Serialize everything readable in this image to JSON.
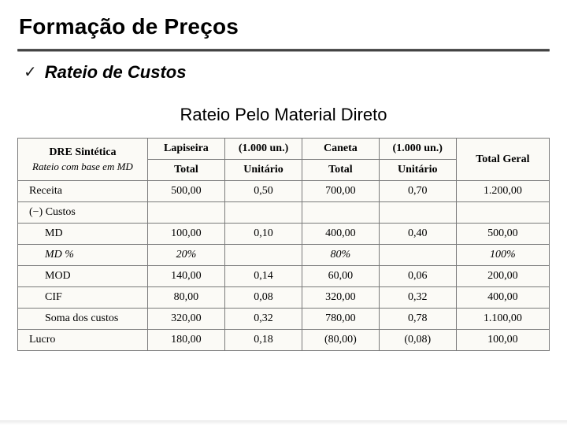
{
  "title": "Formação de Preços",
  "subtitle": "Rateio de Custos",
  "section_title": "Rateio Pelo Material Direto",
  "check_glyph": "✓",
  "colors": {
    "text": "#000000",
    "background": "#ffffff",
    "table_bg": "#fbfaf6",
    "border": "#7a7a7a",
    "hr": "#3a3a3a"
  },
  "table": {
    "header": {
      "block_title": "DRE Sintética",
      "block_sub": "Rateio com base em MD",
      "group1": "Lapiseira",
      "group1_qty": "(1.000 un.)",
      "group2": "Caneta",
      "group2_qty": "(1.000 un.)",
      "sub_total": "Total",
      "sub_unit": "Unitário",
      "grand": "Total Geral"
    },
    "rows": [
      {
        "label": "Receita",
        "v": [
          "500,00",
          "0,50",
          "700,00",
          "0,70",
          "1.200,00"
        ]
      },
      {
        "label": "(−) Custos",
        "v": [
          "",
          "",
          "",
          "",
          ""
        ]
      },
      {
        "label": "MD",
        "v": [
          "100,00",
          "0,10",
          "400,00",
          "0,40",
          "500,00"
        ],
        "indent": true
      },
      {
        "label": "MD %",
        "v": [
          "20%",
          "",
          "80%",
          "",
          "100%"
        ],
        "indent": true,
        "italic": true
      },
      {
        "label": "MOD",
        "v": [
          "140,00",
          "0,14",
          "60,00",
          "0,06",
          "200,00"
        ],
        "indent": true
      },
      {
        "label": "CIF",
        "v": [
          "80,00",
          "0,08",
          "320,00",
          "0,32",
          "400,00"
        ],
        "indent": true
      },
      {
        "label": "Soma dos custos",
        "v": [
          "320,00",
          "0,32",
          "780,00",
          "0,78",
          "1.100,00"
        ],
        "indent": true
      },
      {
        "label": "Lucro",
        "v": [
          "180,00",
          "0,18",
          "(80,00)",
          "(0,08)",
          "100,00"
        ]
      }
    ]
  }
}
